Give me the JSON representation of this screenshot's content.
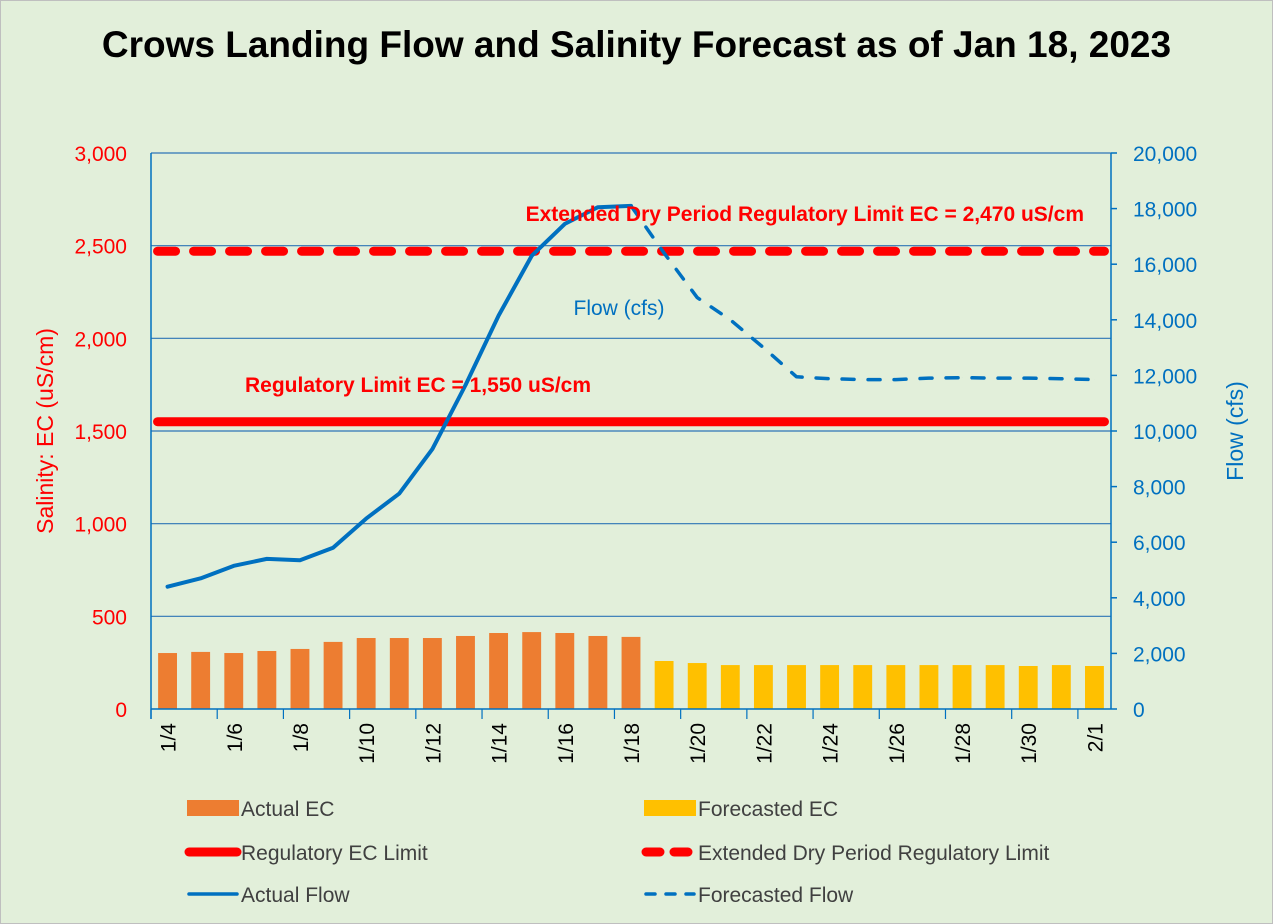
{
  "chart_data": {
    "type": "bar+line",
    "title": "Crows Landing Flow and Salinity Forecast as of Jan 18, 2023",
    "ylabel_left": "Salinity: EC (uS/cm)",
    "ylabel_right": "Flow (cfs)",
    "ylim_left": [
      0,
      3000
    ],
    "ylim_right": [
      0,
      20000
    ],
    "yticks_left": [
      "0",
      "500",
      "1,000",
      "1,500",
      "2,000",
      "2,500",
      "3,000"
    ],
    "yticks_right": [
      "0",
      "2,000",
      "4,000",
      "6,000",
      "8,000",
      "10,000",
      "12,000",
      "14,000",
      "16,000",
      "18,000",
      "20,000"
    ],
    "grid": true,
    "legend_position": "bottom",
    "categories": [
      "1/4",
      "1/5",
      "1/6",
      "1/7",
      "1/8",
      "1/9",
      "1/10",
      "1/11",
      "1/12",
      "1/13",
      "1/14",
      "1/15",
      "1/16",
      "1/17",
      "1/18",
      "1/19",
      "1/20",
      "1/21",
      "1/22",
      "1/23",
      "1/24",
      "1/25",
      "1/26",
      "1/27",
      "1/28",
      "1/29",
      "1/30",
      "1/31",
      "2/1"
    ],
    "xtick_labels": [
      "1/4",
      "1/6",
      "1/8",
      "1/10",
      "1/12",
      "1/14",
      "1/16",
      "1/18",
      "1/20",
      "1/22",
      "1/24",
      "1/26",
      "1/28",
      "1/30",
      "2/1"
    ],
    "series": [
      {
        "name": "Actual EC",
        "type": "bar",
        "axis": "left",
        "color": "#ed7d31",
        "values": [
          302,
          308,
          302,
          313,
          324,
          362,
          383,
          383,
          383,
          394,
          410,
          415,
          410,
          394,
          389,
          null,
          null,
          null,
          null,
          null,
          null,
          null,
          null,
          null,
          null,
          null,
          null,
          null,
          null
        ]
      },
      {
        "name": "Forecasted EC",
        "type": "bar",
        "axis": "left",
        "color": "#ffc000",
        "values": [
          null,
          null,
          null,
          null,
          null,
          null,
          null,
          null,
          null,
          null,
          null,
          null,
          null,
          null,
          null,
          259,
          248,
          237,
          237,
          237,
          237,
          237,
          237,
          237,
          237,
          237,
          232,
          237,
          232
        ]
      },
      {
        "name": "Regulatory EC Limit",
        "type": "line",
        "axis": "left",
        "color": "#ff0000",
        "style": "solid",
        "value": 1550
      },
      {
        "name": "Extended Dry Period Regulatory Limit",
        "type": "line",
        "axis": "left",
        "color": "#ff0000",
        "style": "dashed",
        "value": 2470
      },
      {
        "name": "Actual Flow",
        "type": "line",
        "axis": "right",
        "color": "#0070c0",
        "style": "solid",
        "values": [
          4400,
          4700,
          5150,
          5400,
          5350,
          5800,
          6850,
          7750,
          9350,
          11650,
          14150,
          16300,
          17450,
          18050,
          18100,
          null,
          null,
          null,
          null,
          null,
          null,
          null,
          null,
          null,
          null,
          null,
          null,
          null,
          null
        ]
      },
      {
        "name": "Forecasted Flow",
        "type": "line",
        "axis": "right",
        "color": "#0070c0",
        "style": "dashed",
        "values": [
          null,
          null,
          null,
          null,
          null,
          null,
          null,
          null,
          null,
          null,
          null,
          null,
          null,
          null,
          null,
          16400,
          14800,
          14000,
          13000,
          11950,
          11880,
          11850,
          11850,
          11900,
          11920,
          11900,
          11900,
          11880,
          11850
        ]
      }
    ],
    "annotations": [
      "Extended Dry Period Regulatory Limit EC = 2,470 uS/cm",
      "Regulatory Limit EC = 1,550 uS/cm",
      "Flow (cfs)"
    ]
  }
}
